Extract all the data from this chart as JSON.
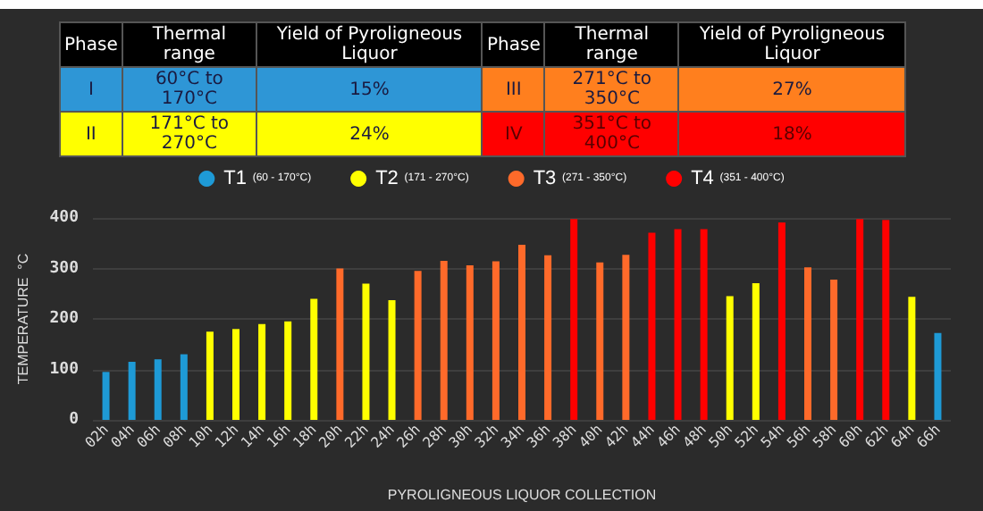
{
  "chart_data": [
    {
      "type": "other",
      "categories": [
        "Phase",
        "Thermal range",
        "Yield of Pyroligneous Liquor",
        "Phase",
        "Thermal range",
        "Yield of Pyroligneous Liquor"
      ],
      "cell_labels": [
        [
          "I",
          "60°C to 170°C",
          "15%",
          "III",
          "271°C to 350°C",
          "27%"
        ],
        [
          "II",
          "171°C to 270°C",
          "24%",
          "IV",
          "351°C to 400°C",
          "18%"
        ]
      ],
      "colors": [
        [
          "#2e96d6",
          "#ff7f1e"
        ],
        [
          "#ffff00",
          "#ff0000"
        ]
      ]
    },
    {
      "type": "bar",
      "xlabel": "PYROLIGNEOUS LIQUOR COLLECTION",
      "ylabel": "TEMPERATURE  °C",
      "categories": [
        "02h",
        "04h",
        "06h",
        "08h",
        "10h",
        "12h",
        "14h",
        "16h",
        "18h",
        "20h",
        "22h",
        "24h",
        "26h",
        "28h",
        "30h",
        "32h",
        "34h",
        "36h",
        "38h",
        "40h",
        "42h",
        "44h",
        "46h",
        "48h",
        "50h",
        "52h",
        "54h",
        "56h",
        "58h",
        "60h",
        "62h",
        "64h",
        "66h"
      ],
      "series": [
        {
          "name": "T1 (60 - 170°C)",
          "color": "#1e9ad6",
          "values": [
            95,
            115,
            120,
            130,
            null,
            null,
            null,
            null,
            null,
            null,
            null,
            null,
            null,
            null,
            null,
            null,
            null,
            null,
            null,
            null,
            null,
            null,
            null,
            null,
            null,
            null,
            null,
            null,
            null,
            null,
            null,
            null,
            172
          ]
        },
        {
          "name": "T2 (171 - 270°C)",
          "color": "#ffff00",
          "values": [
            null,
            null,
            null,
            null,
            175,
            180,
            190,
            195,
            240,
            null,
            270,
            237,
            null,
            null,
            null,
            null,
            null,
            null,
            null,
            null,
            null,
            null,
            null,
            null,
            245,
            271,
            null,
            null,
            null,
            null,
            null,
            244,
            null
          ]
        },
        {
          "name": "T3 (271 - 350°C)",
          "color": "#ff6a2a",
          "values": [
            null,
            null,
            null,
            null,
            null,
            null,
            null,
            null,
            null,
            300,
            null,
            null,
            295,
            315,
            306,
            314,
            347,
            326,
            null,
            312,
            327,
            null,
            null,
            null,
            null,
            null,
            null,
            302,
            278,
            null,
            null,
            null,
            null
          ]
        },
        {
          "name": "T4 (351 - 400°C)",
          "color": "#ff0000",
          "values": [
            null,
            null,
            null,
            null,
            null,
            null,
            null,
            null,
            null,
            null,
            null,
            null,
            null,
            null,
            null,
            null,
            null,
            null,
            398,
            null,
            null,
            371,
            378,
            378,
            null,
            null,
            391,
            null,
            null,
            398,
            396,
            null,
            null
          ]
        }
      ],
      "ylim": [
        0,
        400
      ],
      "yticks": [
        0,
        100,
        200,
        300,
        400
      ],
      "grid": "y",
      "legend": "top"
    }
  ]
}
